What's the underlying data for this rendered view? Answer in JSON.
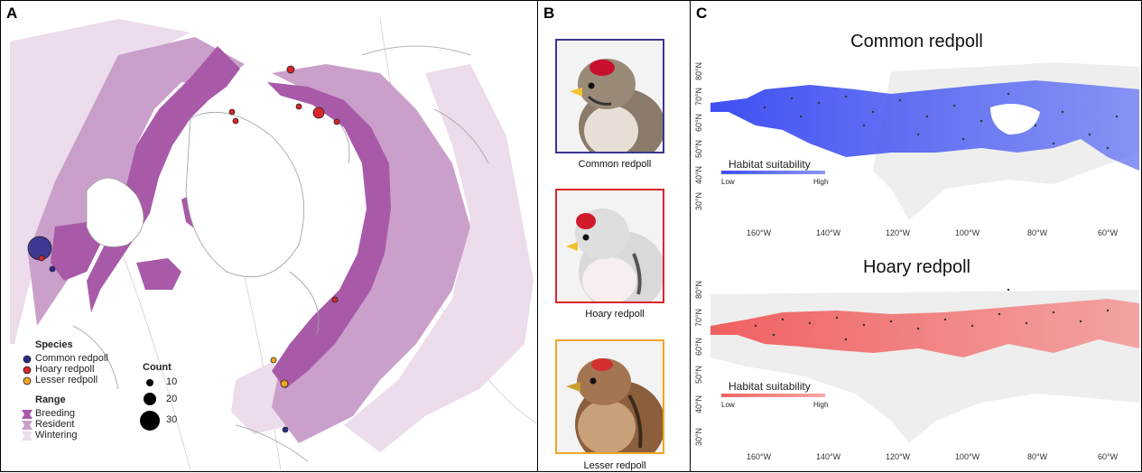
{
  "panel_a": {
    "letter": "A",
    "species_heading": "Species",
    "species": [
      {
        "label": "Common redpoll",
        "color": "#2b2d8c"
      },
      {
        "label": "Hoary redpoll",
        "color": "#d9262b"
      },
      {
        "label": "Lesser redpoll",
        "color": "#f0a623"
      }
    ],
    "count_heading": "Count",
    "counts": [
      "10",
      "20",
      "30"
    ],
    "range_heading": "Range",
    "ranges": [
      {
        "label": "Breeding",
        "color": "#a85aa8"
      },
      {
        "label": "Resident",
        "color": "#caa0cb"
      },
      {
        "label": "Wintering",
        "color": "#ecdcec"
      }
    ]
  },
  "panel_b": {
    "letter": "B",
    "photos": [
      {
        "caption": "Common redpoll",
        "frame_color": "#3b3591",
        "icon": "common-redpoll-photo"
      },
      {
        "caption": "Hoary redpoll",
        "frame_color": "#d9262b",
        "icon": "hoary-redpoll-photo"
      },
      {
        "caption": "Lesser redpoll",
        "frame_color": "#f0a623",
        "icon": "lesser-redpoll-photo"
      }
    ]
  },
  "panel_c": {
    "letter": "C",
    "maps": [
      {
        "title": "Common redpoll",
        "legend_title": "Habitat suitability",
        "low": "Low",
        "high": "High",
        "color": "#2a3cf0"
      },
      {
        "title": "Hoary redpoll",
        "legend_title": "Habitat suitability",
        "low": "Low",
        "high": "High",
        "color": "#f05050"
      }
    ],
    "lon_labels": [
      "160°W",
      "140°W",
      "120°W",
      "100°W",
      "80°W",
      "60°W"
    ],
    "lat_labels": [
      "80°N",
      "70°N",
      "60°N",
      "50°N",
      "40°N",
      "30°N"
    ]
  }
}
